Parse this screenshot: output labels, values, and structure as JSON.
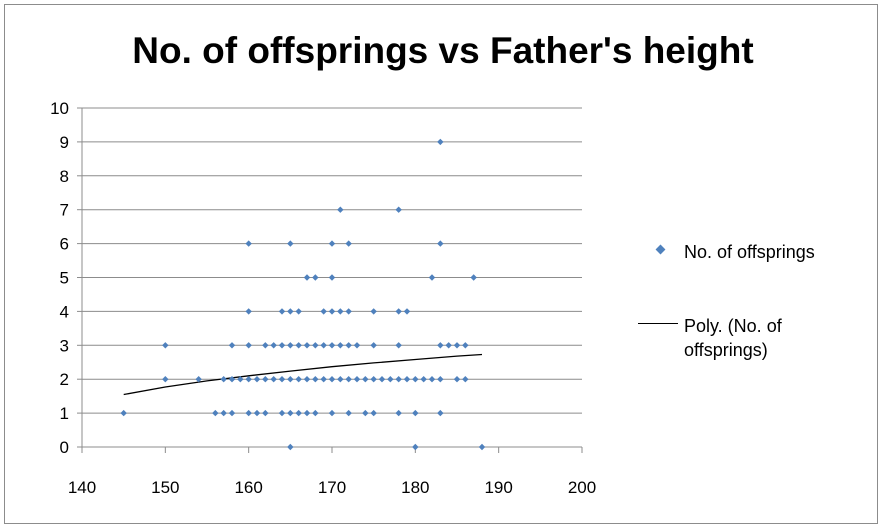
{
  "chart_data": {
    "type": "scatter",
    "title": "No. of offsprings vs Father's height",
    "xlabel": "",
    "ylabel": "",
    "xlim": [
      140,
      200
    ],
    "ylim": [
      0,
      10
    ],
    "x_ticks": [
      "140",
      "150",
      "160",
      "170",
      "180",
      "190",
      "200"
    ],
    "y_ticks": [
      "0",
      "1",
      "2",
      "3",
      "4",
      "5",
      "6",
      "7",
      "8",
      "9",
      "10"
    ],
    "grid": "horizontal",
    "legend_position": "right",
    "series": [
      {
        "name": "No. of offsprings",
        "color": "#4f81bd",
        "points": [
          [
            145,
            1
          ],
          [
            156,
            1
          ],
          [
            157,
            1
          ],
          [
            158,
            1
          ],
          [
            160,
            1
          ],
          [
            161,
            1
          ],
          [
            162,
            1
          ],
          [
            164,
            1
          ],
          [
            165,
            1
          ],
          [
            166,
            1
          ],
          [
            167,
            1
          ],
          [
            168,
            1
          ],
          [
            170,
            1
          ],
          [
            172,
            1
          ],
          [
            174,
            1
          ],
          [
            175,
            1
          ],
          [
            178,
            1
          ],
          [
            180,
            1
          ],
          [
            183,
            1
          ],
          [
            150,
            2
          ],
          [
            154,
            2
          ],
          [
            157,
            2
          ],
          [
            158,
            2
          ],
          [
            159,
            2
          ],
          [
            160,
            2
          ],
          [
            161,
            2
          ],
          [
            162,
            2
          ],
          [
            163,
            2
          ],
          [
            164,
            2
          ],
          [
            165,
            2
          ],
          [
            166,
            2
          ],
          [
            167,
            2
          ],
          [
            168,
            2
          ],
          [
            169,
            2
          ],
          [
            170,
            2
          ],
          [
            171,
            2
          ],
          [
            172,
            2
          ],
          [
            173,
            2
          ],
          [
            174,
            2
          ],
          [
            175,
            2
          ],
          [
            176,
            2
          ],
          [
            177,
            2
          ],
          [
            178,
            2
          ],
          [
            179,
            2
          ],
          [
            180,
            2
          ],
          [
            181,
            2
          ],
          [
            182,
            2
          ],
          [
            183,
            2
          ],
          [
            185,
            2
          ],
          [
            186,
            2
          ],
          [
            150,
            3
          ],
          [
            158,
            3
          ],
          [
            160,
            3
          ],
          [
            162,
            3
          ],
          [
            163,
            3
          ],
          [
            164,
            3
          ],
          [
            165,
            3
          ],
          [
            166,
            3
          ],
          [
            167,
            3
          ],
          [
            168,
            3
          ],
          [
            169,
            3
          ],
          [
            170,
            3
          ],
          [
            171,
            3
          ],
          [
            172,
            3
          ],
          [
            173,
            3
          ],
          [
            175,
            3
          ],
          [
            178,
            3
          ],
          [
            183,
            3
          ],
          [
            184,
            3
          ],
          [
            185,
            3
          ],
          [
            186,
            3
          ],
          [
            160,
            4
          ],
          [
            164,
            4
          ],
          [
            165,
            4
          ],
          [
            166,
            4
          ],
          [
            169,
            4
          ],
          [
            170,
            4
          ],
          [
            171,
            4
          ],
          [
            172,
            4
          ],
          [
            175,
            4
          ],
          [
            178,
            4
          ],
          [
            179,
            4
          ],
          [
            167,
            5
          ],
          [
            168,
            5
          ],
          [
            170,
            5
          ],
          [
            182,
            5
          ],
          [
            187,
            5
          ],
          [
            160,
            6
          ],
          [
            165,
            6
          ],
          [
            170,
            6
          ],
          [
            172,
            6
          ],
          [
            183,
            6
          ],
          [
            171,
            7
          ],
          [
            178,
            7
          ],
          [
            183,
            9
          ],
          [
            165,
            0
          ],
          [
            180,
            0
          ],
          [
            188,
            0
          ]
        ]
      },
      {
        "name": "Poly. (No. of offsprings)",
        "type": "line",
        "color": "#000000",
        "x": [
          145,
          150,
          155,
          160,
          165,
          170,
          175,
          180,
          185,
          188
        ],
        "y": [
          1.55,
          1.77,
          1.95,
          2.1,
          2.24,
          2.37,
          2.48,
          2.58,
          2.68,
          2.73
        ]
      }
    ]
  }
}
